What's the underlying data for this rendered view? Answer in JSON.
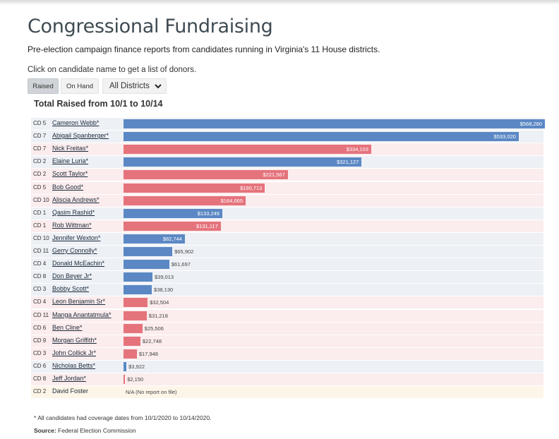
{
  "header": {
    "title": "Congressional Fundraising",
    "subtitle": "Pre-election campaign finance reports from candidates running in Virginia's 11 House districts.",
    "instruction": "Click on candidate name to get a list of donors."
  },
  "controls": {
    "raised_label": "Raised",
    "onhand_label": "On Hand",
    "active": "Raised",
    "district_select": "All Districts"
  },
  "colors": {
    "democrat": "#5b88c4",
    "republican": "#e5737c",
    "democrat_row_bg": "#edf0f5",
    "republican_row_bg": "#fbeced",
    "no_report_row_bg": "#fdf6e8"
  },
  "chart_data": {
    "type": "bar",
    "orientation": "horizontal",
    "title": "Total Raised from 10/1 to 10/14",
    "xlim": [
      0,
      568280
    ],
    "rows": [
      {
        "district": "CD 5",
        "candidate": "Cameron Webb*",
        "party": "dem",
        "value": 568280,
        "label": "$568,280"
      },
      {
        "district": "CD 7",
        "candidate": "Abigail Spanberger*",
        "party": "dem",
        "value": 533020,
        "label": "$533,020"
      },
      {
        "district": "CD 7",
        "candidate": "Nick Freitas*",
        "party": "rep",
        "value": 334103,
        "label": "$334,103"
      },
      {
        "district": "CD 2",
        "candidate": "Elaine Luria*",
        "party": "dem",
        "value": 321127,
        "label": "$321,127"
      },
      {
        "district": "CD 2",
        "candidate": "Scott Taylor*",
        "party": "rep",
        "value": 221567,
        "label": "$221,567"
      },
      {
        "district": "CD 5",
        "candidate": "Bob Good*",
        "party": "rep",
        "value": 190713,
        "label": "$190,713"
      },
      {
        "district": "CD 10",
        "candidate": "Aliscia Andrews*",
        "party": "rep",
        "value": 164665,
        "label": "$164,665"
      },
      {
        "district": "CD 1",
        "candidate": "Qasim Rashid*",
        "party": "dem",
        "value": 133249,
        "label": "$133,249"
      },
      {
        "district": "CD 1",
        "candidate": "Rob Wittman*",
        "party": "rep",
        "value": 131117,
        "label": "$131,117"
      },
      {
        "district": "CD 10",
        "candidate": "Jennifer Wexton*",
        "party": "dem",
        "value": 82744,
        "label": "$82,744"
      },
      {
        "district": "CD 11",
        "candidate": "Gerry Connolly*",
        "party": "dem",
        "value": 65902,
        "label": "$65,902"
      },
      {
        "district": "CD 4",
        "candidate": "Donald McEachin*",
        "party": "dem",
        "value": 61697,
        "label": "$61,697"
      },
      {
        "district": "CD 8",
        "candidate": "Don Beyer Jr*",
        "party": "dem",
        "value": 39013,
        "label": "$39,013"
      },
      {
        "district": "CD 3",
        "candidate": "Bobby Scott*",
        "party": "dem",
        "value": 38130,
        "label": "$38,130"
      },
      {
        "district": "CD 4",
        "candidate": "Leon Benjamin Sr*",
        "party": "rep",
        "value": 32504,
        "label": "$32,504"
      },
      {
        "district": "CD 11",
        "candidate": "Manga Anantatmula*",
        "party": "rep",
        "value": 31218,
        "label": "$31,218"
      },
      {
        "district": "CD 6",
        "candidate": "Ben Cline*",
        "party": "rep",
        "value": 25506,
        "label": "$25,506"
      },
      {
        "district": "CD 9",
        "candidate": "Morgan Griffith*",
        "party": "rep",
        "value": 22748,
        "label": "$22,748"
      },
      {
        "district": "CD 3",
        "candidate": "John Collick Jr*",
        "party": "rep",
        "value": 17948,
        "label": "$17,948"
      },
      {
        "district": "CD 6",
        "candidate": "Nicholas Betts*",
        "party": "dem",
        "value": 3922,
        "label": "$3,922"
      },
      {
        "district": "CD 8",
        "candidate": "Jeff Jordan*",
        "party": "rep",
        "value": 2150,
        "label": "$2,150"
      },
      {
        "district": "CD 2",
        "candidate": "David Foster",
        "party": "none",
        "value": null,
        "label": "N/A (No report on file)"
      }
    ]
  },
  "footer": {
    "note": "* All candidates had coverage dates from 10/1/2020 to 10/14/2020.",
    "source_label": "Source:",
    "source_value": "Federal Election Commission"
  }
}
